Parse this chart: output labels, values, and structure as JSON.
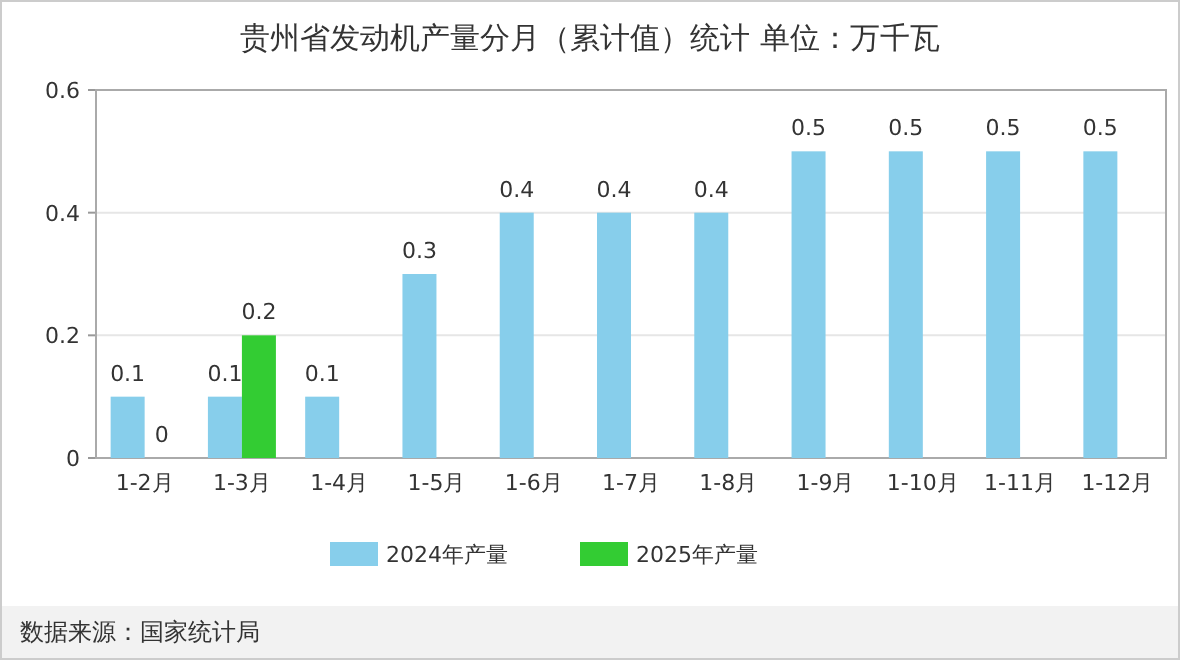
{
  "chart_data": {
    "type": "bar",
    "title": "贵州省发动机产量分月（累计值）统计 单位：万千瓦",
    "categories": [
      "1-2月",
      "1-3月",
      "1-4月",
      "1-5月",
      "1-6月",
      "1-7月",
      "1-8月",
      "1-9月",
      "1-10月",
      "1-11月",
      "1-12月"
    ],
    "series": [
      {
        "name": "2024年产量",
        "color": "#87ceeb",
        "values": [
          0.1,
          0.1,
          0.1,
          0.3,
          0.4,
          0.4,
          0.4,
          0.5,
          0.5,
          0.5,
          0.5
        ]
      },
      {
        "name": "2025年产量",
        "color": "#33cc33",
        "values": [
          0,
          0.2,
          null,
          null,
          null,
          null,
          null,
          null,
          null,
          null,
          null
        ]
      }
    ],
    "ylim": [
      0,
      0.6
    ],
    "yticks": [
      0,
      0.2,
      0.4,
      0.6
    ],
    "grid": "y",
    "legend": "bottom",
    "data_labels": true,
    "annotations": [
      "数据来源：国家统计局"
    ]
  }
}
